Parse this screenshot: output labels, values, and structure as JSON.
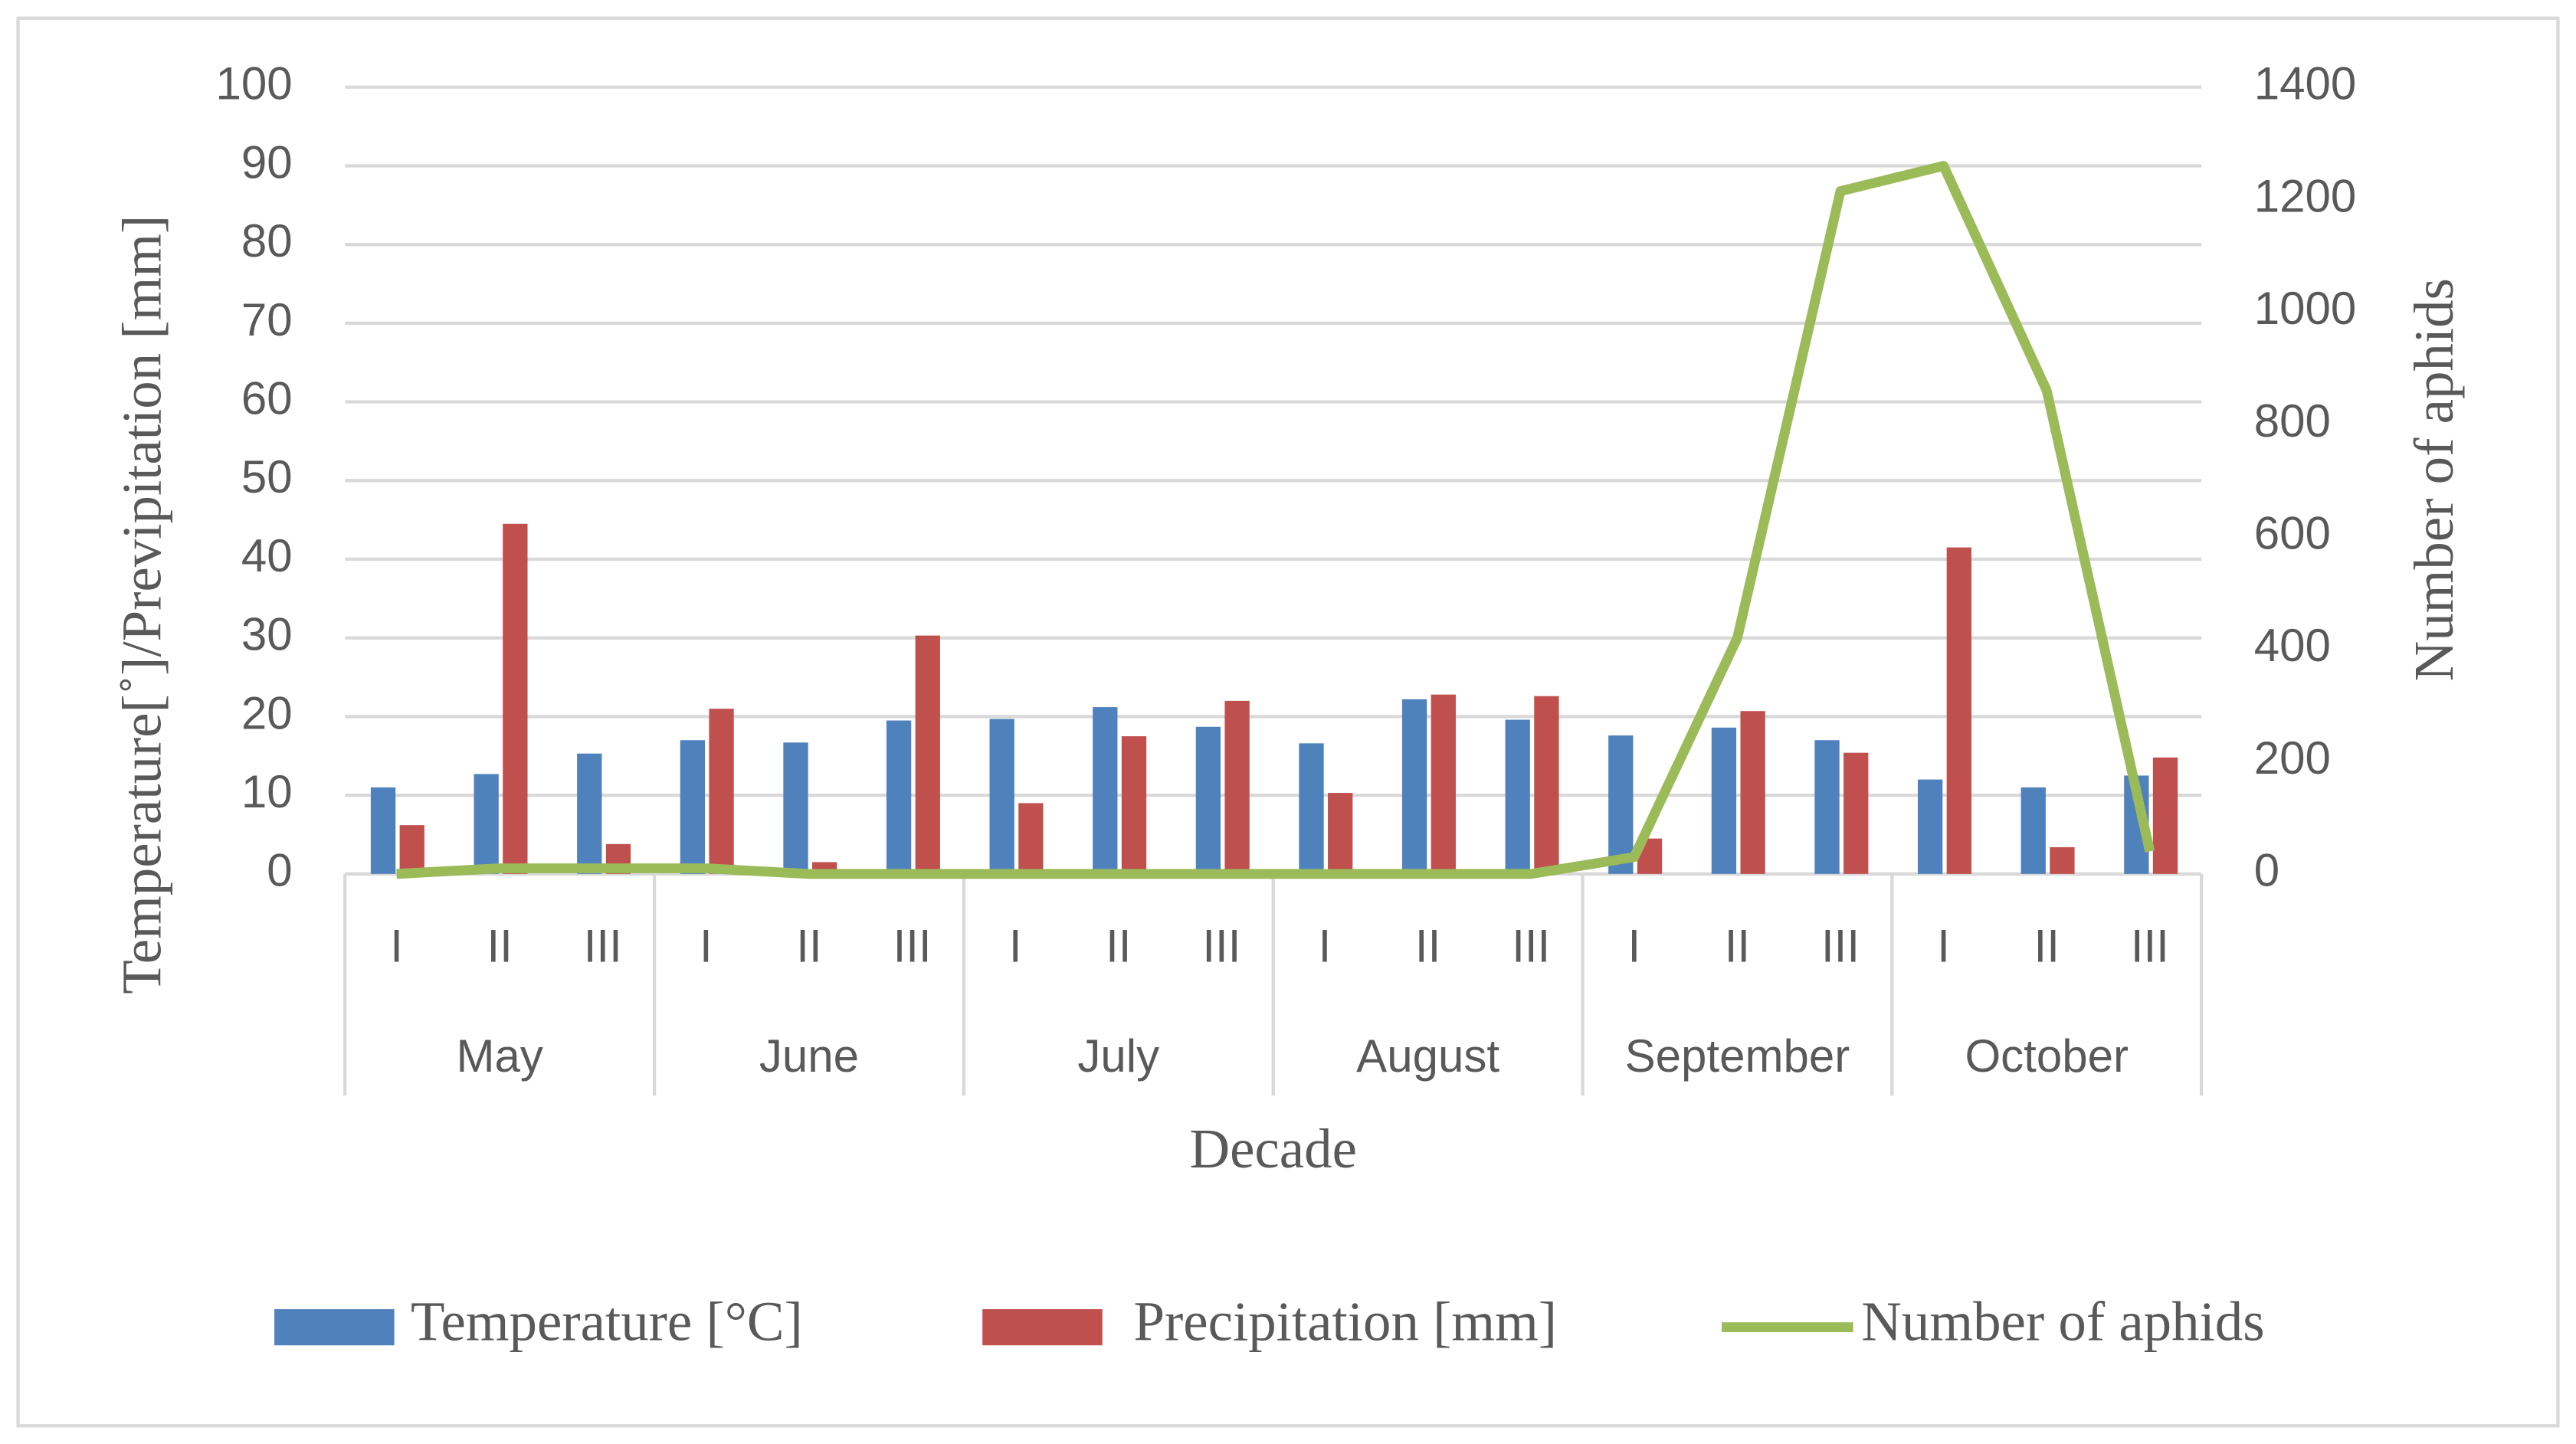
{
  "chart_data": {
    "type": "bar",
    "x_label": "Decade",
    "y_label": "Temperature[˚]/Previpitation [mm]",
    "y2_label": "Number of aphids",
    "categories": [
      "I",
      "II",
      "III",
      "I",
      "II",
      "III",
      "I",
      "II",
      "III",
      "I",
      "II",
      "III",
      "I",
      "II",
      "III",
      "I",
      "II",
      "III"
    ],
    "groups": [
      "May",
      "June",
      "July",
      "August",
      "September",
      "October"
    ],
    "series": [
      {
        "name": "Temperature [°C]",
        "type": "bar",
        "color": "#4f81bd",
        "values": [
          11,
          12.7,
          15.3,
          17,
          16.7,
          19.5,
          19.7,
          21.2,
          18.7,
          16.6,
          22.2,
          19.6,
          17.6,
          18.6,
          17,
          12,
          11,
          12.5
        ]
      },
      {
        "name": "Precipitation [mm]",
        "type": "bar",
        "color": "#c0504d",
        "values": [
          6.2,
          44.5,
          3.8,
          21,
          1.5,
          30.3,
          9,
          17.5,
          22,
          10.3,
          22.8,
          22.6,
          4.5,
          20.7,
          15.4,
          41.5,
          3.4,
          14.8
        ]
      },
      {
        "name": "Number of aphids",
        "type": "line",
        "axis": "y2",
        "color": "#9bbb59",
        "values": [
          0,
          10,
          10,
          10,
          0,
          0,
          0,
          0,
          0,
          0,
          0,
          0,
          30,
          420,
          1215,
          1260,
          860,
          40
        ]
      }
    ],
    "ylim": [
      0,
      100
    ],
    "yticks": [
      0,
      10,
      20,
      30,
      40,
      50,
      60,
      70,
      80,
      90,
      100
    ],
    "y2lim": [
      0,
      1400
    ],
    "y2ticks": [
      0,
      200,
      400,
      600,
      800,
      1000,
      1200,
      1400
    ],
    "grid": true,
    "legend": "bottom"
  }
}
